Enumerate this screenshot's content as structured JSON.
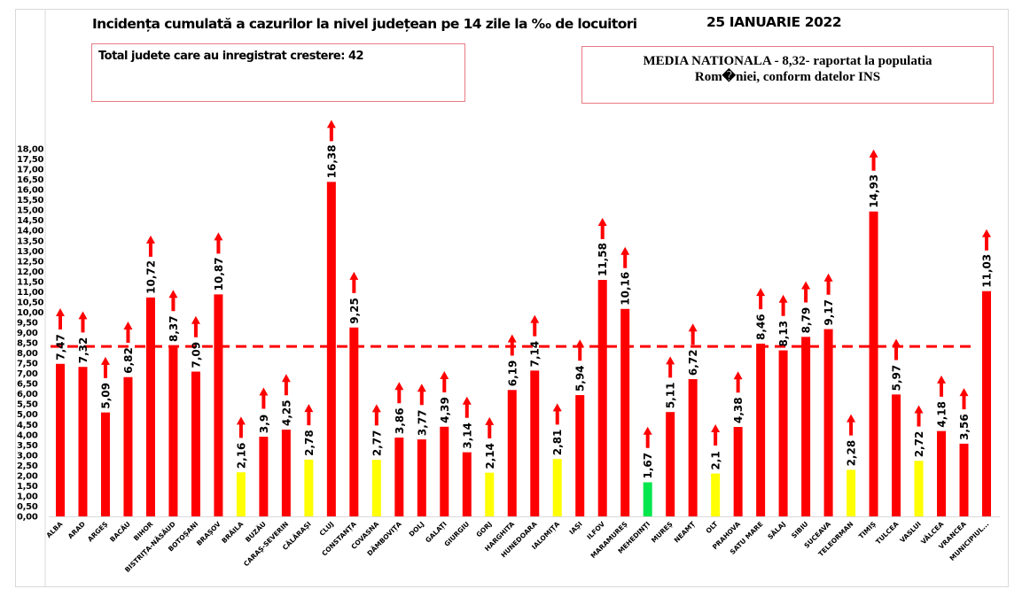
{
  "header": {
    "title": "Incidența cumulată a cazurilor la nivel județean pe 14 zile la ‰ de locuitori",
    "date": "25 IANUARIE 2022",
    "increase_box": "Total judete care au inregistrat crestere: 42",
    "national_box_line1": "MEDIA NATIONALA - 8,32-  raportat la populatia",
    "national_box_line2": "Rom�niei, conform datelor INS"
  },
  "chart_data": {
    "type": "bar",
    "title": "Incidența cumulată a cazurilor la nivel județean pe 14 zile la ‰ de locuitori",
    "subtitle": "25 IANUARIE 2022",
    "xlabel": "",
    "ylabel": "",
    "ylim": [
      0,
      18
    ],
    "ytick_step": 0.5,
    "ytick_format": "comma-2-decimals",
    "grid": false,
    "legend": "none",
    "reference_line": {
      "value": 8.32,
      "label": "MEDIA NATIONALA",
      "style": "dashed",
      "color": "#ff0000"
    },
    "colors": {
      "high": "#ff0000",
      "medium": "#ffff00",
      "low": "#00e64d",
      "arrow": "#ff0000"
    },
    "categories": [
      "ALBA",
      "ARAD",
      "ARGEȘ",
      "BACĂU",
      "BIHOR",
      "BISTRIȚA-NĂSĂUD",
      "BOTOȘANI",
      "BRAȘOV",
      "BRĂILA",
      "BUZĂU",
      "CARAȘ-SEVERIN",
      "CĂLĂRAȘI",
      "CLUJ",
      "CONSTANȚA",
      "COVASNA",
      "DÂMBOVIȚA",
      "DOLJ",
      "GALAȚI",
      "GIURGIU",
      "GORJ",
      "HARGHITA",
      "HUNEDOARA",
      "IALOMIȚA",
      "IAȘI",
      "ILFOV",
      "MARAMUREȘ",
      "MEHEDINȚI",
      "MUREȘ",
      "NEAMȚ",
      "OLT",
      "PRAHOVA",
      "SATU MARE",
      "SĂLAJ",
      "SIBIU",
      "SUCEAVA",
      "TELEORMAN",
      "TIMIȘ",
      "TULCEA",
      "VASLUI",
      "VÂLCEA",
      "VRANCEA",
      "MUNICIPIUL..."
    ],
    "values": [
      7.47,
      7.32,
      5.09,
      6.82,
      10.72,
      8.37,
      7.09,
      10.87,
      2.16,
      3.9,
      4.25,
      2.78,
      16.38,
      9.25,
      2.77,
      3.86,
      3.77,
      4.39,
      3.14,
      2.14,
      6.19,
      7.14,
      2.81,
      5.94,
      11.58,
      10.16,
      1.67,
      5.11,
      6.72,
      2.1,
      4.38,
      8.46,
      8.13,
      8.79,
      9.17,
      2.28,
      14.93,
      5.97,
      2.72,
      4.18,
      3.56,
      11.03
    ],
    "data_labels": [
      "7,47",
      "7,32",
      "5,09",
      "6,82",
      "10,72",
      "8,37",
      "7,09",
      "10,87",
      "2,16",
      "3,9",
      "4,25",
      "2,78",
      "16,38",
      "9,25",
      "2,77",
      "3,86",
      "3,77",
      "4,39",
      "3,14",
      "2,14",
      "6,19",
      "7,14",
      "2,81",
      "5,94",
      "11,58",
      "10,16",
      "1,67",
      "5,11",
      "6,72",
      "2,1",
      "4,38",
      "8,46",
      "8,13",
      "8,79",
      "9,17",
      "2,28",
      "14,93",
      "5,97",
      "2,72",
      "4,18",
      "3,56",
      "11,03"
    ],
    "bar_color_class": [
      "high",
      "high",
      "high",
      "high",
      "high",
      "high",
      "high",
      "high",
      "medium",
      "high",
      "high",
      "medium",
      "high",
      "high",
      "medium",
      "high",
      "high",
      "high",
      "high",
      "medium",
      "high",
      "high",
      "medium",
      "high",
      "high",
      "high",
      "low",
      "high",
      "high",
      "medium",
      "high",
      "high",
      "high",
      "high",
      "high",
      "medium",
      "high",
      "high",
      "medium",
      "high",
      "high",
      "high"
    ],
    "trend": [
      "up",
      "up",
      "up",
      "up",
      "up",
      "up",
      "up",
      "up",
      "up",
      "up",
      "up",
      "up",
      "up",
      "up",
      "up",
      "up",
      "up",
      "up",
      "up",
      "up",
      "up",
      "up",
      "up",
      "up",
      "up",
      "up",
      "up",
      "up",
      "up",
      "up",
      "up",
      "up",
      "up",
      "up",
      "up",
      "up",
      "up",
      "up",
      "up",
      "up",
      "up",
      "up"
    ],
    "yticks": [
      "0,00",
      "0,50",
      "1,00",
      "1,50",
      "2,00",
      "2,50",
      "3,00",
      "3,50",
      "4,00",
      "4,50",
      "5,00",
      "5,50",
      "6,00",
      "6,50",
      "7,00",
      "7,50",
      "8,00",
      "8,50",
      "9,00",
      "9,50",
      "10,00",
      "10,50",
      "11,00",
      "11,50",
      "12,00",
      "12,50",
      "13,00",
      "13,50",
      "14,00",
      "14,50",
      "15,00",
      "15,50",
      "16,00",
      "16,50",
      "17,00",
      "17,50",
      "18,00"
    ]
  }
}
